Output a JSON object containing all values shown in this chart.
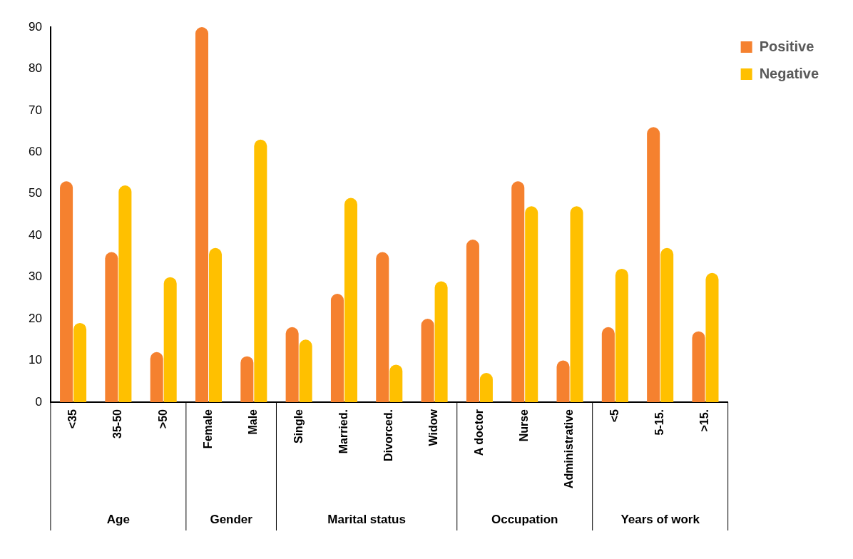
{
  "chart_data": {
    "type": "bar",
    "categories": [
      "<35",
      "35-50",
      ">50",
      "Female",
      "Male",
      "Single",
      "Married.",
      "Divorced.",
      "Widow",
      "A doctor",
      "Nurse",
      "Administrative",
      "<5",
      "5-15.",
      ">15."
    ],
    "series": [
      {
        "name": "Positive",
        "color": "#f5812f",
        "values": [
          53,
          36,
          12,
          90,
          11,
          18,
          26,
          36,
          20,
          39,
          53,
          10,
          18,
          66,
          17
        ]
      },
      {
        "name": "Negative",
        "color": "#ffc000",
        "values": [
          19,
          52,
          30,
          37,
          63,
          15,
          49,
          9,
          29,
          7,
          47,
          47,
          32,
          37,
          31
        ]
      }
    ],
    "annotations": [
      "Age",
      "Gender",
      "Marital status",
      "Occupation",
      "Years of work"
    ],
    "ylim": [
      0,
      90
    ],
    "yticks": [
      0,
      10,
      20,
      30,
      40,
      50,
      60,
      70,
      80,
      90
    ],
    "grid": false,
    "legend": "top right"
  }
}
